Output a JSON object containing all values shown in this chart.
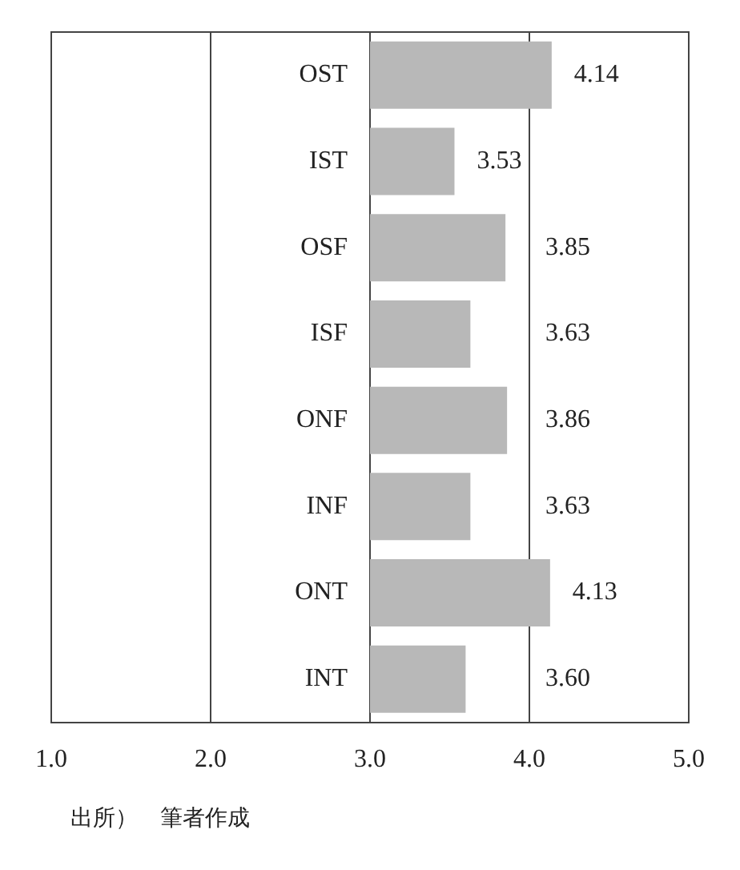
{
  "chart_data": {
    "type": "bar",
    "orientation": "horizontal",
    "categories": [
      "OST",
      "IST",
      "OSF",
      "ISF",
      "ONF",
      "INF",
      "ONT",
      "INT"
    ],
    "base": [
      3,
      3,
      3,
      3,
      3,
      3,
      3,
      3
    ],
    "values": [
      1.14,
      0.53,
      0.85,
      0.63,
      0.86,
      0.63,
      1.13,
      0.6
    ],
    "value_labels": [
      "4.14",
      "3.53",
      "3.85",
      "3.63",
      "3.86",
      "3.63",
      "4.13",
      "3.60"
    ],
    "color": "#b8b8b8",
    "xlim": [
      1,
      5
    ],
    "xticks": [
      {
        "value": 1,
        "label": "1.0"
      },
      {
        "value": 2,
        "label": "2.0"
      },
      {
        "value": 3,
        "label": "3.0"
      },
      {
        "value": 4,
        "label": "4.0"
      },
      {
        "value": 5,
        "label": "5.0"
      }
    ],
    "grid": "x",
    "legend": false,
    "annotations": [
      "出所）　筆者作成"
    ]
  }
}
